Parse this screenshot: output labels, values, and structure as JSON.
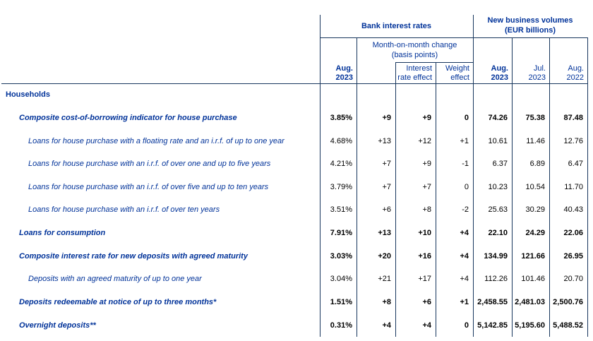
{
  "table": {
    "groups": {
      "bank_interest_rates": "Bank interest rates",
      "new_business_volumes_l1": "New business volumes",
      "new_business_volumes_l2": "(EUR billions)",
      "mom_change_l1": "Month-on-month change",
      "mom_change_l2": "(basis points)"
    },
    "col_headers": {
      "rate_aug": {
        "l1": "Aug.",
        "l2": "2023"
      },
      "interest_effect": {
        "l1": "Interest",
        "l2": "rate effect"
      },
      "weight_effect": {
        "l1": "Weight",
        "l2": "effect"
      },
      "nbv_aug23": {
        "l1": "Aug.",
        "l2": "2023"
      },
      "nbv_jul23": {
        "l1": "Jul.",
        "l2": "2023"
      },
      "nbv_aug22": {
        "l1": "Aug.",
        "l2": "2022"
      }
    },
    "colors": {
      "label_blue": "#003299",
      "line_navy": "#17365d",
      "value_black": "#000000"
    },
    "rows": [
      {
        "label": "Households",
        "style": "section",
        "indent": 0,
        "values": [
          "",
          "",
          "",
          "",
          "",
          "",
          ""
        ]
      },
      {
        "label": "Composite cost-of-borrowing indicator for house purchase",
        "style": "bold-italic",
        "indent": 1,
        "values": [
          "3.85%",
          "+9",
          "+9",
          "0",
          "74.26",
          "75.38",
          "87.48"
        ]
      },
      {
        "label": "Loans for house purchase with a floating rate and an i.r.f. of up to one year",
        "style": "italic",
        "indent": 2,
        "values": [
          "4.68%",
          "+13",
          "+12",
          "+1",
          "10.61",
          "11.46",
          "12.76"
        ]
      },
      {
        "label": "Loans for house purchase with an i.r.f. of over one and up to five years",
        "style": "italic",
        "indent": 2,
        "values": [
          "4.21%",
          "+7",
          "+9",
          "-1",
          "6.37",
          "6.89",
          "6.47"
        ]
      },
      {
        "label": "Loans for house purchase with an i.r.f. of over five and up to ten years",
        "style": "italic",
        "indent": 2,
        "values": [
          "3.79%",
          "+7",
          "+7",
          "0",
          "10.23",
          "10.54",
          "11.70"
        ]
      },
      {
        "label": "Loans for house purchase with an i.r.f. of over ten years",
        "style": "italic",
        "indent": 2,
        "values": [
          "3.51%",
          "+6",
          "+8",
          "-2",
          "25.63",
          "30.29",
          "40.43"
        ]
      },
      {
        "label": "Loans for consumption",
        "style": "bold-italic",
        "indent": 1,
        "values": [
          "7.91%",
          "+13",
          "+10",
          "+4",
          "22.10",
          "24.29",
          "22.06"
        ]
      },
      {
        "label": "Composite interest rate for new deposits with agreed maturity",
        "style": "bold-italic",
        "indent": 1,
        "values": [
          "3.03%",
          "+20",
          "+16",
          "+4",
          "134.99",
          "121.66",
          "26.95"
        ]
      },
      {
        "label": "Deposits with an agreed maturity of up to one year",
        "style": "italic",
        "indent": 2,
        "values": [
          "3.04%",
          "+21",
          "+17",
          "+4",
          "112.26",
          "101.46",
          "20.70"
        ]
      },
      {
        "label": "Deposits redeemable at notice of up to three months*",
        "style": "bold-italic",
        "indent": 1,
        "values": [
          "1.51%",
          "+8",
          "+6",
          "+1",
          "2,458.55",
          "2,481.03",
          "2,500.76"
        ]
      },
      {
        "label": "Overnight deposits**",
        "style": "bold-italic",
        "indent": 1,
        "values": [
          "0.31%",
          "+4",
          "+4",
          "0",
          "5,142.85",
          "5,195.60",
          "5,488.52"
        ]
      }
    ]
  }
}
